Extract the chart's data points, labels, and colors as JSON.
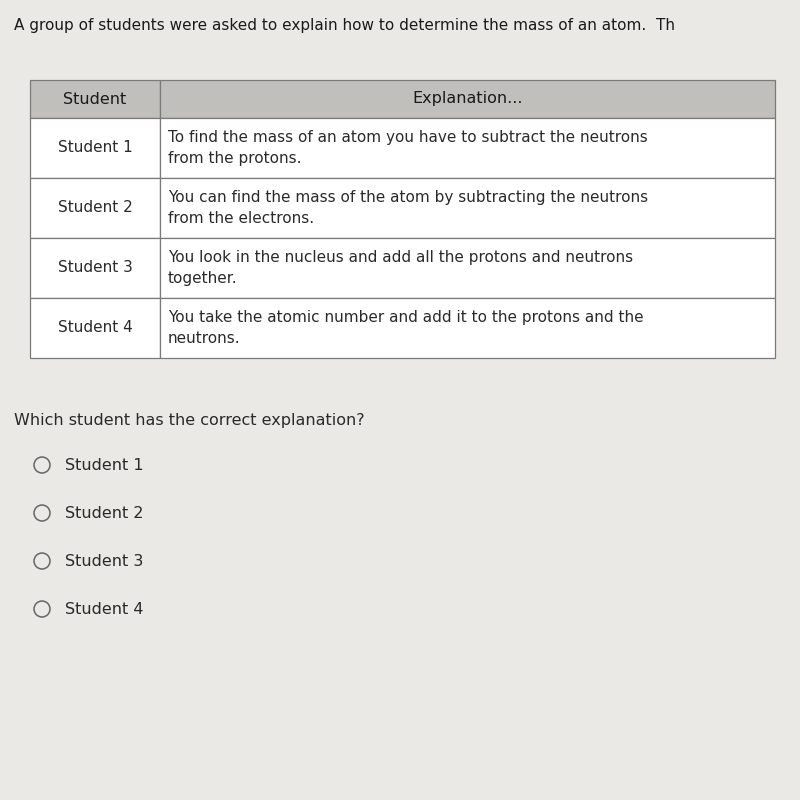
{
  "title": "A group of students were asked to explain how to determine the mass of an atom.  Th",
  "table_header": [
    "Student",
    "Explanation..."
  ],
  "table_rows": [
    [
      "Student 1",
      "To find the mass of an atom you have to subtract the neutrons\nfrom the protons."
    ],
    [
      "Student 2",
      "You can find the mass of the atom by subtracting the neutrons\nfrom the electrons."
    ],
    [
      "Student 3",
      "You look in the nucleus and add all the protons and neutrons\ntogether."
    ],
    [
      "Student 4",
      "You take the atomic number and add it to the protons and the\nneutrons."
    ]
  ],
  "question": "Which student has the correct explanation?",
  "options": [
    "Student 1",
    "Student 2",
    "Student 3",
    "Student 4"
  ],
  "bg_color": "#ebe9e5",
  "table_bg": "#ffffff",
  "header_bg": "#c0bfbc",
  "border_color": "#7a7a7a",
  "title_color": "#1a1a1a",
  "question_color": "#2a2a2a",
  "text_color": "#2a2a2a",
  "header_text_color": "#1a1a1a",
  "title_fontsize": 11.0,
  "header_fontsize": 11.5,
  "cell_fontsize": 11.0,
  "question_fontsize": 11.5,
  "option_fontsize": 11.5,
  "fig_width": 8.0,
  "fig_height": 8.0,
  "dpi": 100
}
